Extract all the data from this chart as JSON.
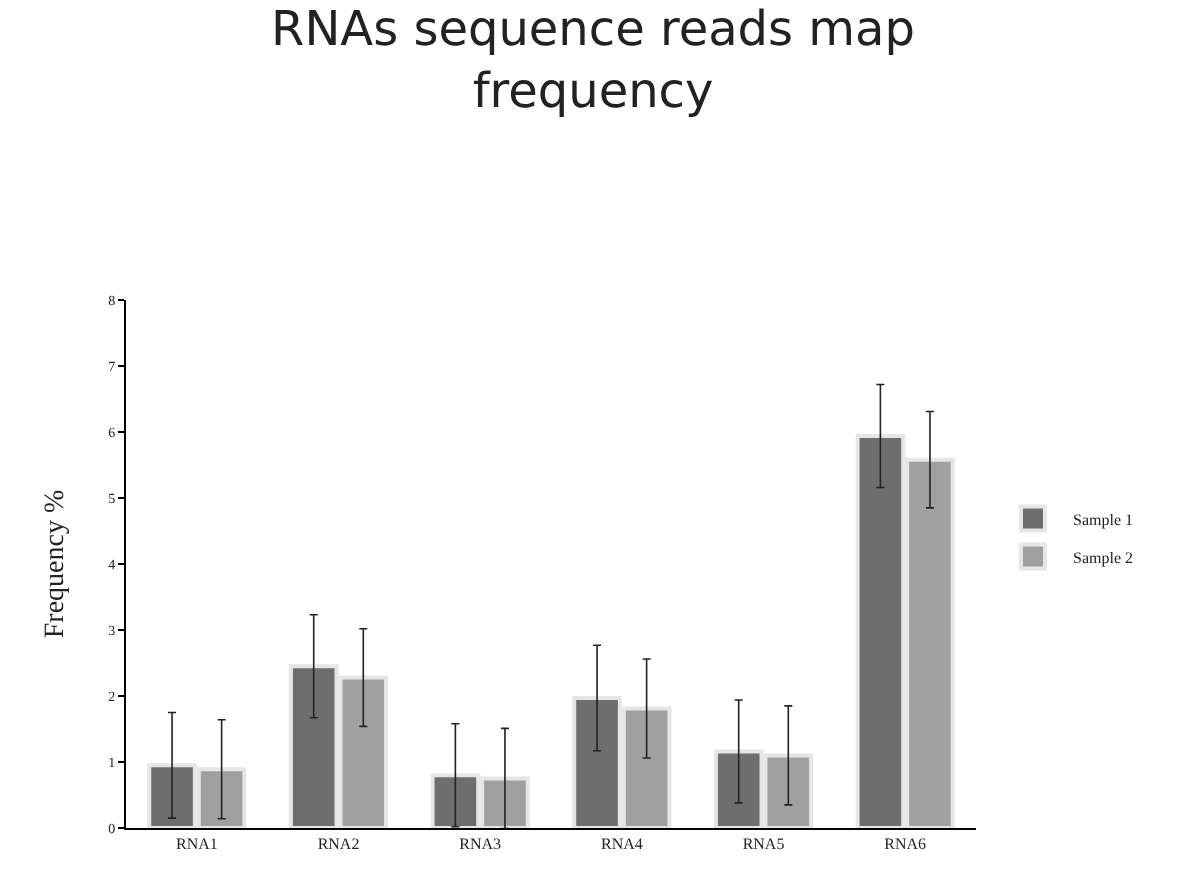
{
  "chart_data": {
    "type": "bar",
    "title": "RNAs sequence reads map frequency",
    "ylabel": "Frequency %",
    "categories": [
      "RNA1",
      "RNA2",
      "RNA3",
      "RNA4",
      "RNA5",
      "RNA6"
    ],
    "series": [
      {
        "name": "Sample 1",
        "color": "#6e6e6e",
        "values": [
          0.95,
          2.45,
          0.8,
          1.97,
          1.16,
          5.94
        ],
        "errors": [
          0.8,
          0.78,
          0.78,
          0.8,
          0.78,
          0.78
        ]
      },
      {
        "name": "Sample 2",
        "color": "#a0a0a0",
        "values": [
          0.89,
          2.28,
          0.75,
          1.81,
          1.1,
          5.58
        ],
        "errors": [
          0.75,
          0.74,
          0.76,
          0.75,
          0.75,
          0.73
        ]
      }
    ],
    "ylim": [
      0,
      8
    ],
    "yticks": [
      0,
      1,
      2,
      3,
      4,
      5,
      6,
      7,
      8
    ],
    "grid": false,
    "legend": "right"
  }
}
